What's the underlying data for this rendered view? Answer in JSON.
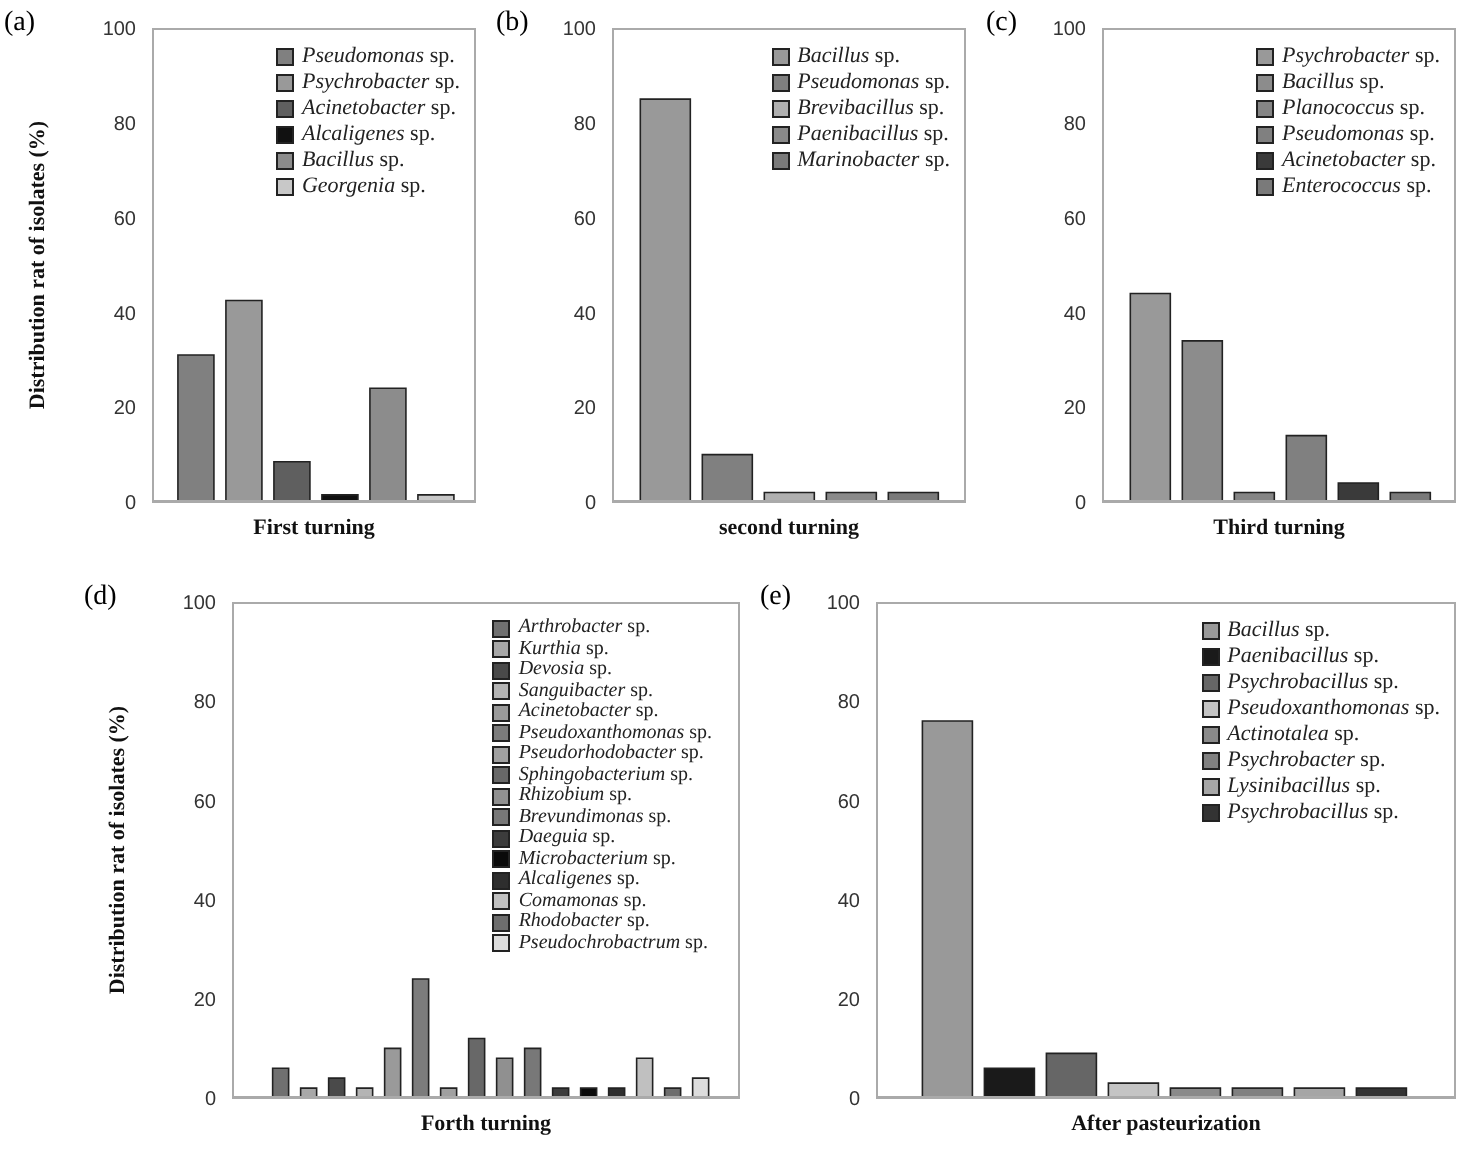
{
  "chart_data": [
    {
      "type": "bar",
      "title": "(a)",
      "xlabel": "First turning",
      "ylabel": "Distribution rat of isolates (%)",
      "categories": [
        null
      ],
      "ylim": [
        0,
        100
      ],
      "yticks": [
        0,
        20,
        40,
        60,
        80,
        100
      ],
      "legend": "top right",
      "series": [
        {
          "name": "Pseudomonas sp.",
          "color": "#808080",
          "values": [
            31
          ]
        },
        {
          "name": "Psychrobacter sp.",
          "color": "#999999",
          "values": [
            42.5
          ]
        },
        {
          "name": "Acinetobacter sp.",
          "color": "#5f5f5f",
          "values": [
            8.5
          ]
        },
        {
          "name": "Alcaligenes sp.",
          "color": "#111111",
          "values": [
            1.5
          ]
        },
        {
          "name": "Bacillus sp.",
          "color": "#8c8c8c",
          "values": [
            24
          ]
        },
        {
          "name": "Georgenia sp.",
          "color": "#c8c8c8",
          "values": [
            1.5
          ]
        }
      ]
    },
    {
      "type": "bar",
      "title": "(b)",
      "xlabel": "second turning",
      "categories": [
        null
      ],
      "ylim": [
        0,
        100
      ],
      "yticks": [
        0,
        20,
        40,
        60,
        80,
        100
      ],
      "legend": "top right",
      "series": [
        {
          "name": "Bacillus sp.",
          "color": "#999999",
          "values": [
            85
          ]
        },
        {
          "name": "Pseudomonas sp.",
          "color": "#808080",
          "values": [
            10
          ]
        },
        {
          "name": "Brevibacillus sp.",
          "color": "#b0b0b0",
          "values": [
            2
          ]
        },
        {
          "name": "Paenibacillus sp.",
          "color": "#8a8a8a",
          "values": [
            2
          ]
        },
        {
          "name": "Marinobacter sp.",
          "color": "#7a7a7a",
          "values": [
            2
          ]
        }
      ]
    },
    {
      "type": "bar",
      "title": "(c)",
      "xlabel": "Third turning",
      "categories": [
        null
      ],
      "ylim": [
        0,
        100
      ],
      "yticks": [
        0,
        20,
        40,
        60,
        80,
        100
      ],
      "legend": "top right",
      "series": [
        {
          "name": "Psychrobacter sp.",
          "color": "#999999",
          "values": [
            44
          ]
        },
        {
          "name": "Bacillus sp.",
          "color": "#8c8c8c",
          "values": [
            34
          ]
        },
        {
          "name": "Planococcus sp.",
          "color": "#858585",
          "values": [
            2
          ]
        },
        {
          "name": "Pseudomonas sp.",
          "color": "#808080",
          "values": [
            14
          ]
        },
        {
          "name": "Acinetobacter sp.",
          "color": "#3a3a3a",
          "values": [
            4
          ]
        },
        {
          "name": "Enterococcus sp.",
          "color": "#7a7a7a",
          "values": [
            2
          ]
        }
      ]
    },
    {
      "type": "bar",
      "title": "(d)",
      "xlabel": "Forth turning",
      "ylabel": "Distribution rat of isolates (%)",
      "categories": [
        null
      ],
      "ylim": [
        0,
        100
      ],
      "yticks": [
        0,
        20,
        40,
        60,
        80,
        100
      ],
      "legend": "top right",
      "series": [
        {
          "name": "Arthrobacter sp.",
          "color": "#707070",
          "values": [
            6
          ]
        },
        {
          "name": "Kurthia sp.",
          "color": "#a8a8a8",
          "values": [
            2
          ]
        },
        {
          "name": "Devosia sp.",
          "color": "#4a4a4a",
          "values": [
            4
          ]
        },
        {
          "name": "Sanguibacter sp.",
          "color": "#b4b4b4",
          "values": [
            2
          ]
        },
        {
          "name": "Acinetobacter sp.",
          "color": "#9a9a9a",
          "values": [
            10
          ]
        },
        {
          "name": "Pseudoxanthomonas sp.",
          "color": "#7c7c7c",
          "values": [
            24
          ]
        },
        {
          "name": "Pseudorhodobacter sp.",
          "color": "#a0a0a0",
          "values": [
            2
          ]
        },
        {
          "name": "Sphingobacterium sp.",
          "color": "#686868",
          "values": [
            12
          ]
        },
        {
          "name": "Rhizobium sp.",
          "color": "#909090",
          "values": [
            8
          ]
        },
        {
          "name": "Brevundimonas sp.",
          "color": "#787878",
          "values": [
            10
          ]
        },
        {
          "name": "Daeguia sp.",
          "color": "#3c3c3c",
          "values": [
            2
          ]
        },
        {
          "name": "Microbacterium sp.",
          "color": "#0a0a0a",
          "values": [
            2
          ]
        },
        {
          "name": "Alcaligenes sp.",
          "color": "#2e2e2e",
          "values": [
            2
          ]
        },
        {
          "name": "Comamonas sp.",
          "color": "#c0c0c0",
          "values": [
            8
          ]
        },
        {
          "name": "Rhodobacter sp.",
          "color": "#6e6e6e",
          "values": [
            2
          ]
        },
        {
          "name": "Pseudochrobactrum sp.",
          "color": "#dcdcdc",
          "values": [
            4
          ]
        }
      ]
    },
    {
      "type": "bar",
      "title": "(e)",
      "xlabel": "After pasteurization",
      "categories": [
        null
      ],
      "ylim": [
        0,
        100
      ],
      "yticks": [
        0,
        20,
        40,
        60,
        80,
        100
      ],
      "legend": "top right",
      "series": [
        {
          "name": "Bacillus sp.",
          "color": "#999999",
          "values": [
            76
          ]
        },
        {
          "name": "Paenibacillus sp.",
          "color": "#1a1a1a",
          "values": [
            6
          ]
        },
        {
          "name": "Psychrobacillus sp.",
          "color": "#666666",
          "values": [
            9
          ]
        },
        {
          "name": "Pseudoxanthomonas sp.",
          "color": "#c4c4c4",
          "values": [
            3
          ]
        },
        {
          "name": "Actinotalea sp.",
          "color": "#8a8a8a",
          "values": [
            2
          ]
        },
        {
          "name": "Psychrobacter sp.",
          "color": "#808080",
          "values": [
            2
          ]
        },
        {
          "name": "Lysinibacillus sp.",
          "color": "#a6a6a6",
          "values": [
            2
          ]
        },
        {
          "name": "Psychrobacillus sp.",
          "color": "#333333",
          "values": [
            2
          ]
        }
      ]
    }
  ]
}
